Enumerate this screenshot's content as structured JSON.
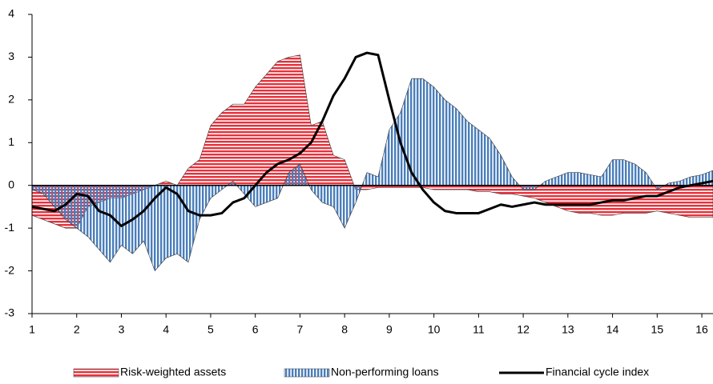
{
  "chart_data": {
    "type": "area",
    "x": [
      1,
      1.25,
      1.5,
      1.75,
      2,
      2.25,
      2.5,
      2.75,
      3,
      3.25,
      3.5,
      3.75,
      4,
      4.25,
      4.5,
      4.75,
      5,
      5.25,
      5.5,
      5.75,
      6,
      6.25,
      6.5,
      6.75,
      7,
      7.25,
      7.5,
      7.75,
      8,
      8.25,
      8.5,
      8.75,
      9,
      9.25,
      9.5,
      9.75,
      10,
      10.25,
      10.5,
      10.75,
      11,
      11.25,
      11.5,
      11.75,
      12,
      12.25,
      12.5,
      12.75,
      13,
      13.25,
      13.5,
      13.75,
      14,
      14.25,
      14.5,
      14.75,
      15,
      15.25,
      15.5,
      15.75,
      16,
      16.25
    ],
    "series": [
      {
        "name": "Risk-weighted assets",
        "color": "#e8303a",
        "type": "area",
        "values": [
          -0.7,
          -0.8,
          -0.9,
          -1.0,
          -1.0,
          -0.5,
          -0.4,
          -0.3,
          -0.3,
          -0.2,
          -0.1,
          0.0,
          0.1,
          0.0,
          0.4,
          0.6,
          1.4,
          1.7,
          1.9,
          1.9,
          2.3,
          2.6,
          2.9,
          3.0,
          3.05,
          1.4,
          1.5,
          0.7,
          0.6,
          -0.1,
          -0.1,
          -0.05,
          -0.05,
          -0.05,
          -0.05,
          -0.05,
          -0.1,
          -0.1,
          -0.1,
          -0.1,
          -0.15,
          -0.15,
          -0.2,
          -0.2,
          -0.25,
          -0.3,
          -0.4,
          -0.5,
          -0.6,
          -0.65,
          -0.65,
          -0.7,
          -0.7,
          -0.65,
          -0.65,
          -0.65,
          -0.6,
          -0.65,
          -0.7,
          -0.75,
          -0.75,
          -0.75
        ]
      },
      {
        "name": "Non-performing loans",
        "color": "#4a7ebb",
        "type": "area",
        "values": [
          -0.1,
          -0.2,
          -0.5,
          -0.8,
          -1.0,
          -1.2,
          -1.5,
          -1.8,
          -1.4,
          -1.6,
          -1.3,
          -2.0,
          -1.7,
          -1.6,
          -1.8,
          -0.8,
          -0.3,
          -0.1,
          0.1,
          -0.2,
          -0.5,
          -0.4,
          -0.3,
          0.3,
          0.5,
          -0.1,
          -0.4,
          -0.5,
          -1.0,
          -0.4,
          0.3,
          0.2,
          1.3,
          1.7,
          2.5,
          2.5,
          2.3,
          2.0,
          1.8,
          1.5,
          1.3,
          1.1,
          0.7,
          0.2,
          -0.1,
          -0.1,
          0.1,
          0.2,
          0.3,
          0.3,
          0.25,
          0.2,
          0.6,
          0.6,
          0.5,
          0.3,
          -0.1,
          0.05,
          0.1,
          0.2,
          0.25,
          0.35
        ]
      },
      {
        "name": "Financial cycle index",
        "color": "#000000",
        "type": "line",
        "values": [
          -0.5,
          -0.55,
          -0.6,
          -0.45,
          -0.2,
          -0.25,
          -0.6,
          -0.7,
          -0.95,
          -0.8,
          -0.6,
          -0.3,
          -0.05,
          -0.2,
          -0.6,
          -0.7,
          -0.7,
          -0.65,
          -0.4,
          -0.3,
          0.0,
          0.3,
          0.5,
          0.6,
          0.75,
          1.0,
          1.5,
          2.1,
          2.5,
          3.0,
          3.1,
          3.05,
          2.0,
          1.0,
          0.3,
          -0.1,
          -0.4,
          -0.6,
          -0.65,
          -0.65,
          -0.65,
          -0.55,
          -0.45,
          -0.5,
          -0.45,
          -0.4,
          -0.45,
          -0.45,
          -0.45,
          -0.45,
          -0.45,
          -0.4,
          -0.35,
          -0.35,
          -0.3,
          -0.25,
          -0.25,
          -0.15,
          -0.05,
          0.0,
          0.05,
          0.1
        ]
      }
    ],
    "xlim": [
      1,
      16.25
    ],
    "xticks": [
      1,
      2,
      3,
      4,
      5,
      6,
      7,
      8,
      9,
      10,
      11,
      12,
      13,
      14,
      15,
      16
    ],
    "ylim": [
      -3,
      4
    ],
    "yticks": [
      -3,
      -2,
      -1,
      0,
      1,
      2,
      3,
      4
    ],
    "legend": "bottom"
  }
}
